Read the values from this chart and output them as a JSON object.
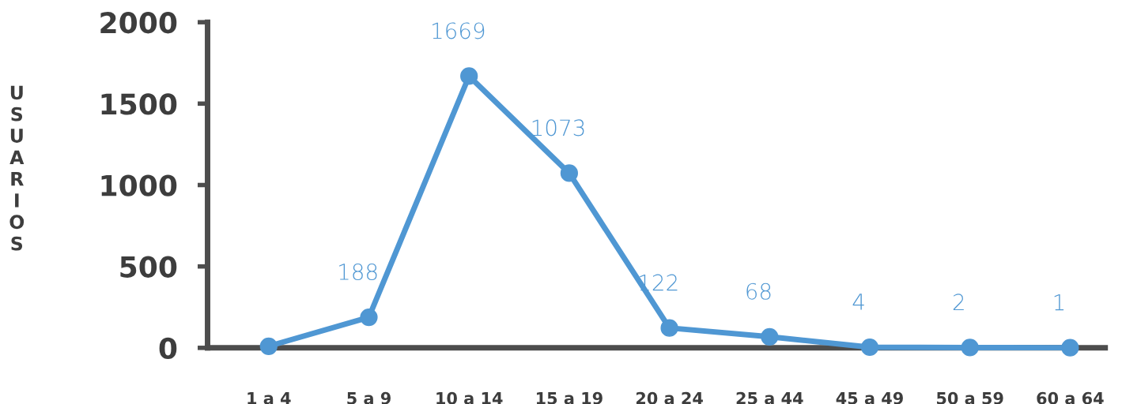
{
  "chart_data": {
    "type": "line",
    "ylabel": "USUARIOS",
    "categories": [
      "1 a 4",
      "5 a 9",
      "10 a 14",
      "15 a 19",
      "20 a 24",
      "25 a 44",
      "45 a 49",
      "50 a 59",
      "60 a 64"
    ],
    "series": [
      {
        "color": "#4f97d3",
        "values": [
          10,
          188,
          1669,
          1073,
          122,
          68,
          4,
          2,
          1
        ],
        "value_labels": [
          null,
          "188",
          "1669",
          "1073",
          "122",
          "68",
          "4",
          "2",
          "1"
        ]
      }
    ],
    "ylim": [
      0,
      2000
    ],
    "yticks": [
      0,
      500,
      1000,
      1500,
      2000
    ],
    "grid": false,
    "legend": false,
    "marker": "circle",
    "line_style": "solid"
  }
}
